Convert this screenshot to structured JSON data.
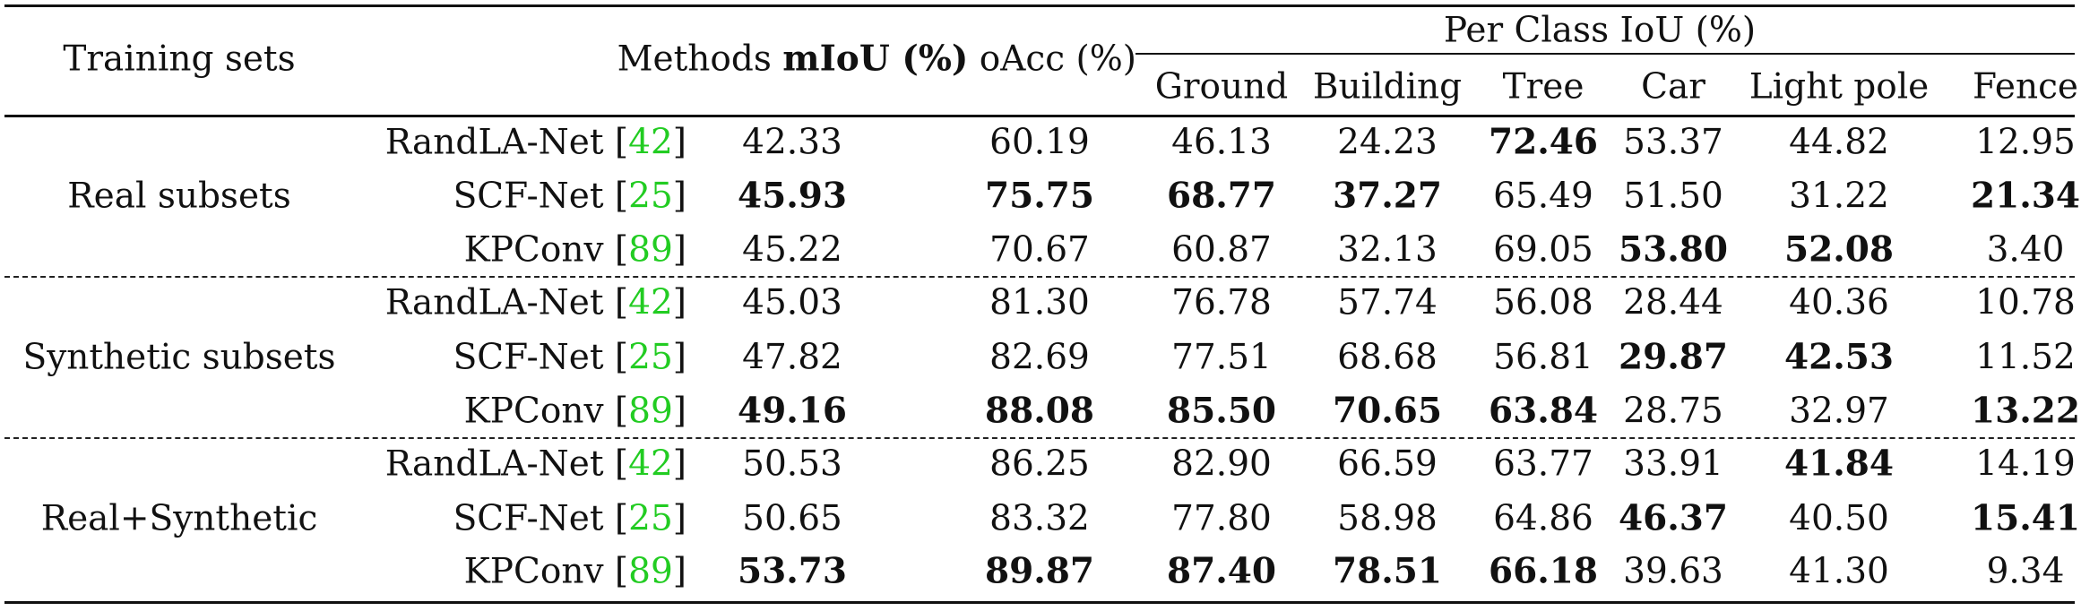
{
  "table": {
    "header": {
      "training_sets": "Training sets",
      "methods": "Methods",
      "miou": "mIoU (%)",
      "oacc": "oAcc (%)",
      "per_class_group": "Per Class IoU (%)",
      "classes": [
        "Ground",
        "Building",
        "Tree",
        "Car",
        "Light pole",
        "Fence"
      ]
    },
    "groups": [
      {
        "label": "Real subsets",
        "rows": [
          {
            "method": "RandLA-Net",
            "cite": "42",
            "values": [
              "42.33",
              "60.19",
              "46.13",
              "24.23",
              "72.46",
              "53.37",
              "44.82",
              "12.95"
            ],
            "bold": [
              false,
              false,
              false,
              false,
              true,
              false,
              false,
              false
            ]
          },
          {
            "method": "SCF-Net",
            "cite": "25",
            "values": [
              "45.93",
              "75.75",
              "68.77",
              "37.27",
              "65.49",
              "51.50",
              "31.22",
              "21.34"
            ],
            "bold": [
              true,
              true,
              true,
              true,
              false,
              false,
              false,
              true
            ]
          },
          {
            "method": "KPConv",
            "cite": "89",
            "values": [
              "45.22",
              "70.67",
              "60.87",
              "32.13",
              "69.05",
              "53.80",
              "52.08",
              "3.40"
            ],
            "bold": [
              false,
              false,
              false,
              false,
              false,
              true,
              true,
              false
            ]
          }
        ]
      },
      {
        "label": "Synthetic subsets",
        "rows": [
          {
            "method": "RandLA-Net",
            "cite": "42",
            "values": [
              "45.03",
              "81.30",
              "76.78",
              "57.74",
              "56.08",
              "28.44",
              "40.36",
              "10.78"
            ],
            "bold": [
              false,
              false,
              false,
              false,
              false,
              false,
              false,
              false
            ]
          },
          {
            "method": "SCF-Net",
            "cite": "25",
            "values": [
              "47.82",
              "82.69",
              "77.51",
              "68.68",
              "56.81",
              "29.87",
              "42.53",
              "11.52"
            ],
            "bold": [
              false,
              false,
              false,
              false,
              false,
              true,
              true,
              false
            ]
          },
          {
            "method": "KPConv",
            "cite": "89",
            "values": [
              "49.16",
              "88.08",
              "85.50",
              "70.65",
              "63.84",
              "28.75",
              "32.97",
              "13.22"
            ],
            "bold": [
              true,
              true,
              true,
              true,
              true,
              false,
              false,
              true
            ]
          }
        ]
      },
      {
        "label": "Real+Synthetic",
        "rows": [
          {
            "method": "RandLA-Net",
            "cite": "42",
            "values": [
              "50.53",
              "86.25",
              "82.90",
              "66.59",
              "63.77",
              "33.91",
              "41.84",
              "14.19"
            ],
            "bold": [
              false,
              false,
              false,
              false,
              false,
              false,
              true,
              false
            ]
          },
          {
            "method": "SCF-Net",
            "cite": "25",
            "values": [
              "50.65",
              "83.32",
              "77.80",
              "58.98",
              "64.86",
              "46.37",
              "40.50",
              "15.41"
            ],
            "bold": [
              false,
              false,
              false,
              false,
              false,
              true,
              false,
              true
            ]
          },
          {
            "method": "KPConv",
            "cite": "89",
            "values": [
              "53.73",
              "89.87",
              "87.40",
              "78.51",
              "66.18",
              "39.63",
              "41.30",
              "9.34"
            ],
            "bold": [
              true,
              true,
              true,
              true,
              true,
              false,
              false,
              false
            ]
          }
        ]
      }
    ],
    "colors": {
      "text": "#111111",
      "citation": "#22cc22",
      "rule": "#111111"
    }
  }
}
